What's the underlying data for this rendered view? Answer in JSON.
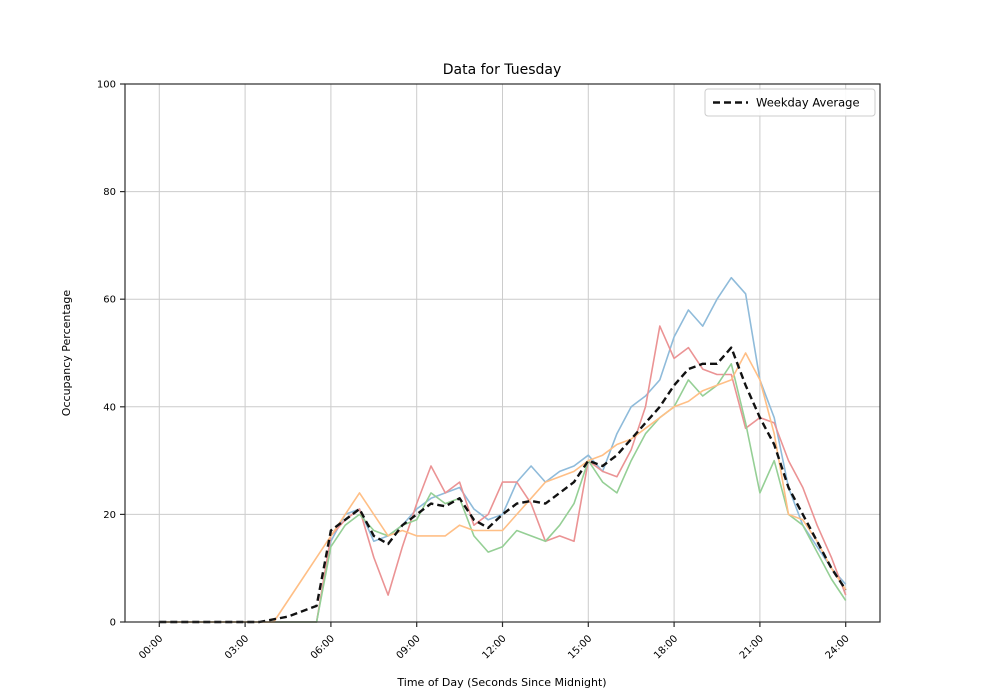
{
  "chart_data": {
    "type": "line",
    "title": "Data for Tuesday",
    "xlabel": "Time of Day (Seconds Since Midnight)",
    "ylabel": "Occupancy Percentage",
    "ylim": [
      0,
      100
    ],
    "xlim_hours": [
      0,
      24
    ],
    "grid": true,
    "y_ticks": [
      0,
      20,
      40,
      60,
      80,
      100
    ],
    "x_tick_hours": [
      0,
      3,
      6,
      9,
      12,
      15,
      18,
      21,
      24
    ],
    "x_tick_labels": [
      "00:00",
      "03:00",
      "06:00",
      "09:00",
      "12:00",
      "15:00",
      "18:00",
      "21:00",
      "24:00"
    ],
    "colors": {
      "grid": "#cccccc",
      "axis": "#2b2b2b",
      "background": "#ffffff",
      "text": "#000000",
      "legend_border": "#cccccc"
    },
    "legend": {
      "position": "upper right",
      "entries": [
        {
          "label": "Weekday Average",
          "style": "dashed",
          "color": "#111111"
        }
      ]
    },
    "x_hours": [
      0,
      0.5,
      1,
      1.5,
      2,
      2.5,
      3,
      3.5,
      4,
      4.5,
      5,
      5.5,
      6,
      6.5,
      7,
      7.5,
      8,
      8.5,
      9,
      9.5,
      10,
      10.5,
      11,
      11.5,
      12,
      12.5,
      13,
      13.5,
      14,
      14.5,
      15,
      15.5,
      16,
      16.5,
      17,
      17.5,
      18,
      18.5,
      19,
      19.5,
      20,
      20.5,
      21,
      21.5,
      22,
      22.5,
      23,
      23.5,
      24
    ],
    "series": [
      {
        "name": "day-blue",
        "color": "#8fbbda",
        "width": 1.6,
        "dash": null,
        "values": [
          0,
          0,
          0,
          0,
          0,
          0,
          0,
          0,
          0,
          0,
          0,
          0,
          15,
          20,
          21,
          15,
          16,
          18,
          21,
          23,
          24,
          25,
          21,
          19,
          20,
          26,
          29,
          26,
          28,
          29,
          31,
          28,
          35,
          40,
          42,
          45,
          53,
          58,
          55,
          60,
          64,
          61,
          45,
          38,
          25,
          18,
          14,
          10,
          7
        ]
      },
      {
        "name": "day-red",
        "color": "#eb9394",
        "width": 1.6,
        "dash": null,
        "values": [
          0,
          0,
          0,
          0,
          0,
          0,
          0,
          0,
          0,
          0,
          0,
          0,
          16,
          19,
          21,
          12,
          5,
          14,
          22,
          29,
          24,
          26,
          18,
          20,
          26,
          26,
          22,
          15,
          16,
          15,
          30,
          28,
          27,
          32,
          40,
          55,
          49,
          51,
          47,
          46,
          46,
          36,
          38,
          37,
          30,
          25,
          18,
          12,
          5
        ]
      },
      {
        "name": "day-green",
        "color": "#95cf95",
        "width": 1.6,
        "dash": null,
        "values": [
          0,
          0,
          0,
          0,
          0,
          0,
          0,
          0,
          0,
          0,
          0,
          0,
          14,
          18,
          20,
          17,
          16,
          18,
          19,
          24,
          22,
          23,
          16,
          13,
          14,
          17,
          16,
          15,
          18,
          22,
          30,
          26,
          24,
          30,
          35,
          38,
          40,
          45,
          42,
          44,
          48,
          37,
          24,
          30,
          20,
          18,
          13,
          8,
          4
        ]
      },
      {
        "name": "day-orange",
        "color": "#ffbf86",
        "width": 1.6,
        "dash": null,
        "values": [
          0,
          0,
          0,
          0,
          0,
          0,
          0,
          0,
          0,
          4,
          8,
          12,
          16,
          20,
          24,
          20,
          16,
          17,
          16,
          16,
          16,
          18,
          17,
          17,
          17,
          20,
          23,
          26,
          27,
          28,
          30,
          31,
          33,
          34,
          36,
          38,
          40,
          41,
          43,
          44,
          45,
          50,
          45,
          35,
          20,
          19,
          15,
          10,
          6
        ]
      },
      {
        "name": "weekday-average",
        "color": "#111111",
        "width": 2.4,
        "dash": "7 4",
        "values": [
          0,
          0,
          0,
          0,
          0,
          0,
          0,
          0,
          0.5,
          1,
          2,
          3,
          17,
          19,
          21,
          16,
          14.5,
          18,
          20,
          22,
          21.5,
          23,
          19,
          17.5,
          20,
          22,
          22.5,
          22,
          24,
          26,
          30,
          29,
          31,
          34,
          37,
          40,
          44,
          47,
          48,
          48,
          51,
          44,
          38,
          33,
          25,
          20,
          15,
          10,
          6
        ]
      }
    ]
  }
}
